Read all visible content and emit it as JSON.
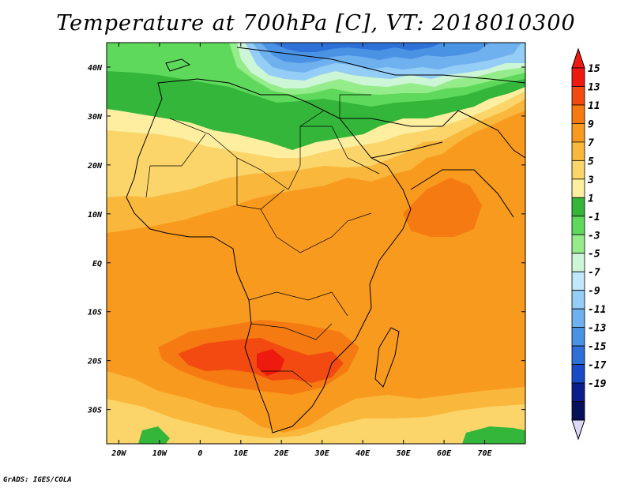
{
  "title": "Temperature at 700hPa [C], VT: 2018010300",
  "credit": "GrADS: IGES/COLA",
  "lat_ticks": [
    "40N",
    "30N",
    "20N",
    "10N",
    "EQ",
    "10S",
    "20S",
    "30S"
  ],
  "lon_ticks": [
    "20W",
    "10W",
    "0",
    "10E",
    "20E",
    "30E",
    "40E",
    "50E",
    "60E",
    "70E"
  ],
  "colorbar": {
    "labels": [
      "15",
      "13",
      "11",
      "9",
      "7",
      "5",
      "3",
      "1",
      "-1",
      "-3",
      "-5",
      "-7",
      "-9",
      "-11",
      "-13",
      "-15",
      "-17",
      "-19"
    ],
    "colors": [
      "#ee1a10",
      "#f24a10",
      "#f57a12",
      "#f89a1e",
      "#f9b83c",
      "#fbd56a",
      "#fdeea0",
      "#34b63b",
      "#5ed95b",
      "#95ec8b",
      "#cdf6d6",
      "#bfe8fb",
      "#94cdf5",
      "#6fb0ee",
      "#4a92e4",
      "#2f6fd8",
      "#1a4bc7",
      "#0b1f8c",
      "#07105a"
    ],
    "top_arrow_color": "#ee1a10",
    "bottom_arrow_color": "#ddd8f6"
  },
  "chart_data": {
    "type": "heatmap",
    "title": "Temperature at 700hPa [C], VT: 2018010300",
    "variable": "Temperature at 700hPa",
    "units": "C",
    "valid_time": "2018010300",
    "xlim": [
      -23,
      80
    ],
    "ylim": [
      -37,
      45
    ],
    "approx_ranges": {
      "mediterranean_europe": [
        -13,
        1
      ],
      "north_africa_sahara": [
        1,
        7
      ],
      "equatorial_africa": [
        7,
        11
      ],
      "southern_africa_max": [
        11,
        15
      ]
    }
  }
}
